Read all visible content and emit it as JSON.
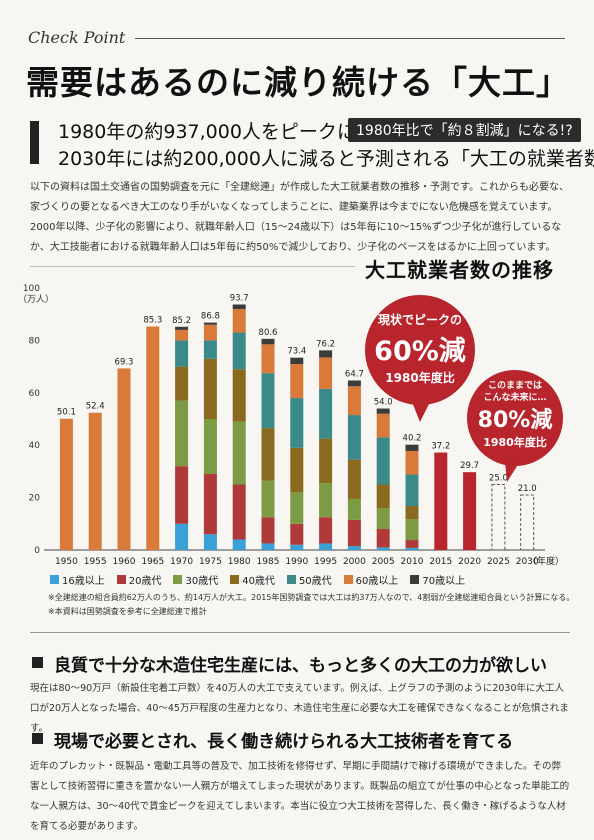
{
  "header": {
    "check_point": "Check Point",
    "title": "需要はあるのに減り続ける「大工」",
    "lead_line1": "1980年の約937,000人をピークに、",
    "lead_badge": "1980年比で「約８割減」になる!?",
    "lead_line2": "2030年には約200,000人に減ると予測される「大工の就業者数」"
  },
  "intro": "以下の資料は国土交通省の国勢調査を元に「全建総連」が作成した大工就業者数の推移・予測です。これからも必要な、家づくりの要となるべき大工のなり手がいなくなってしまうことに、建築業界は今までにない危機感を覚えています。2000年以降、少子化の影響により、就職年齢人口（15〜24歳以下）は5年毎に10〜15%ずつ少子化が進行しているなか、大工技能者における就職年齢人口は5年毎に約50%で減少しており、少子化のペースをはるかに上回っています。",
  "chart_data": {
    "type": "bar",
    "title": "大工就業者数の推移",
    "ylabel_unit": "（万人）",
    "xlabel": "（年度）",
    "ylim": [
      0,
      100
    ],
    "yticks": [
      0,
      20,
      40,
      60,
      80,
      100
    ],
    "categories": [
      "1950",
      "1955",
      "1960",
      "1965",
      "1970",
      "1975",
      "1980",
      "1985",
      "1990",
      "1995",
      "2000",
      "2005",
      "2010",
      "2015",
      "2020",
      "2025",
      "2030"
    ],
    "totals": [
      50.1,
      52.4,
      69.3,
      85.3,
      85.2,
      86.8,
      93.7,
      80.6,
      73.4,
      76.2,
      64.7,
      54.0,
      40.2,
      37.2,
      29.7,
      25.0,
      21.0
    ],
    "bar_kind": [
      "orange",
      "orange",
      "orange",
      "orange",
      "stack",
      "stack",
      "stack",
      "stack",
      "stack",
      "stack",
      "stack",
      "stack",
      "stack",
      "red",
      "red",
      "dashed",
      "dashed"
    ],
    "series": [
      {
        "name": "16歳以上",
        "color": "#3aa0d8",
        "values": [
          null,
          null,
          null,
          null,
          10,
          6,
          4,
          2.5,
          2,
          2.5,
          1.5,
          1,
          0.8,
          null,
          null,
          null,
          null
        ]
      },
      {
        "name": "20歳代",
        "color": "#b03a3a",
        "values": [
          null,
          null,
          null,
          null,
          22,
          23,
          21,
          10,
          8,
          10,
          10,
          7,
          3,
          null,
          null,
          null,
          null
        ]
      },
      {
        "name": "30歳代",
        "color": "#7d9a45",
        "values": [
          null,
          null,
          null,
          null,
          25,
          21,
          24,
          14,
          12,
          13,
          8,
          8,
          8,
          null,
          null,
          null,
          null
        ]
      },
      {
        "name": "40歳代",
        "color": "#8a6a1e",
        "values": [
          null,
          null,
          null,
          null,
          13,
          23,
          20,
          20,
          17,
          17,
          15,
          9,
          5,
          null,
          null,
          null,
          null
        ]
      },
      {
        "name": "50歳代",
        "color": "#3a8a8a",
        "values": [
          null,
          null,
          null,
          null,
          10,
          7,
          14,
          21,
          19,
          19,
          17,
          18,
          12,
          null,
          null,
          null,
          null
        ]
      },
      {
        "name": "60歳以上",
        "color": "#d9793a",
        "values": [
          null,
          null,
          null,
          null,
          4,
          6,
          9,
          11,
          13,
          12,
          11,
          9,
          9,
          null,
          null,
          null,
          null
        ]
      },
      {
        "name": "70歳以上",
        "color": "#3b3b3b",
        "values": [
          null,
          null,
          null,
          null,
          1.2,
          0.8,
          1.7,
          2.1,
          2.4,
          2.7,
          2.2,
          2,
          2.4,
          null,
          null,
          null,
          null
        ]
      }
    ],
    "callouts": [
      {
        "line1": "現状でピークの",
        "big": "60%減",
        "line3": "1980年度比"
      },
      {
        "line1": "このままでは",
        "line1b": "こんな未来に…",
        "big": "80%減",
        "line3": "1980年度比"
      }
    ],
    "colors": {
      "orange": "#d9793a",
      "red": "#b8252c",
      "bubble": "#b8252c"
    }
  },
  "notes": [
    "※全建総連の組合員約62万人のうち、約14万人が大工。2015年国勢調査では大工は約37万人なので、4割弱が全建総連組合員という計算になる。",
    "※本資料は国勢調査を参考に全建総連で推計"
  ],
  "section1": {
    "heading": "良質で十分な木造住宅生産には、もっと多くの大工の力が欲しい",
    "body": "現在は80〜90万戸（新設住宅着工戸数）を40万人の大工で支えています。例えば、上グラフの予測のように2030年に大工人口が20万人となった場合、40〜45万戸程度の生産力となり、木造住宅生産に必要な大工を確保できなくなることが危惧されます。"
  },
  "section2": {
    "heading": "現場で必要とされ、長く働き続けられる大工技術者を育てる",
    "body": "近年のプレカット・既製品・電動工具等の普及で、加工技術を修得せず、早期に手間請けで稼げる環境ができました。その弊害として技術習得に重きを置かない一人親方が増えてしまった現状があります。既製品の組立てが仕事の中心となった単能工的な一人親方は、30〜40代で賃金ピークを迎えてしまいます。本当に役立つ大工技術を習得した、長く働き・稼げるような人材を育てる必要があります。"
  }
}
